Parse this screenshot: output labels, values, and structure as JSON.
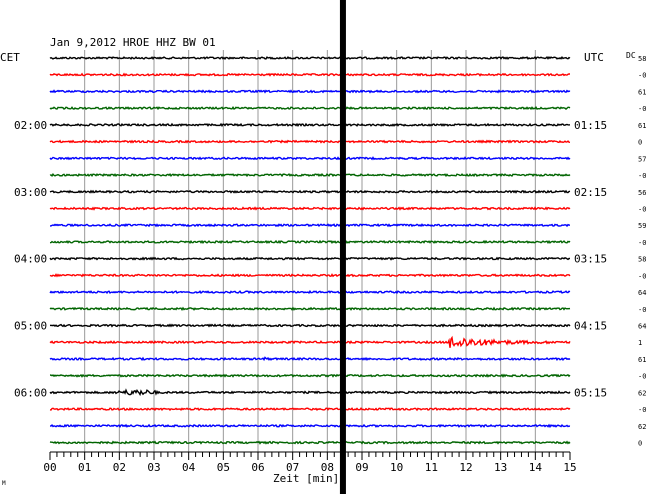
{
  "chart_data": {
    "type": "line",
    "title": "Jan 9,2012   HROE HHZ BW 01",
    "left_axis_label": "CET",
    "right_axis_label": "UTC",
    "right_column_label": "DC",
    "xlabel": "Zeit [min]",
    "xlim": [
      0,
      15
    ],
    "x_ticks": [
      "00",
      "01",
      "02",
      "03",
      "04",
      "05",
      "06",
      "07",
      "08",
      "09",
      "10",
      "11",
      "12",
      "13",
      "14",
      "15"
    ],
    "cet_hour_labels": [
      "02:00",
      "03:00",
      "04:00",
      "05:00",
      "06:00"
    ],
    "utc_hour_labels": [
      "01:15",
      "02:15",
      "03:15",
      "04:15",
      "05:15"
    ],
    "trace_count": 24,
    "trace_colors": [
      "#000000",
      "#ff0000",
      "#0000ff",
      "#006400"
    ],
    "dc_offsets": [
      "58",
      "-0",
      "61",
      "-0",
      "61",
      "0",
      "57",
      "-0",
      "56",
      "-0",
      "59",
      "-0",
      "58",
      "-0",
      "64",
      "-0",
      "64",
      "1",
      "61",
      "-0",
      "62",
      "-0",
      "62",
      "0"
    ],
    "bar_position_min": 8.45,
    "events": [
      {
        "trace": 17,
        "start_min": 11.5,
        "end_min": 15.0,
        "peak_amp": 6,
        "decay": 1.2
      },
      {
        "trace": 18,
        "start_min": 6.15,
        "end_min": 6.6,
        "peak_amp": 3,
        "decay": 3
      },
      {
        "trace": 20,
        "start_min": 1.8,
        "end_min": 3.2,
        "peak_amp": 2,
        "decay": 0
      }
    ],
    "corner_mark": "M"
  }
}
